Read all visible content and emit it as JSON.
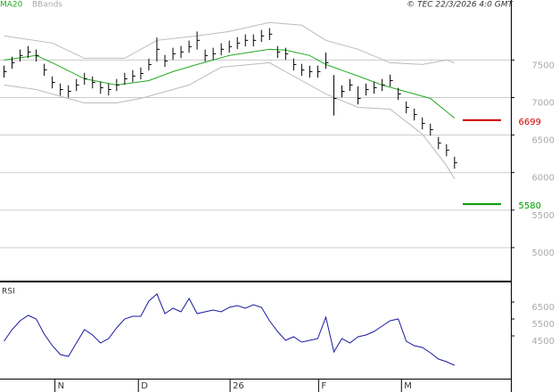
{
  "chart_data": [
    {
      "type": "ohlc",
      "title": "MA20",
      "subtitle": "BBands",
      "annotation": "© TEC 22/3/2026 4:0 GMT",
      "xlim": [
        -0.5,
        63
      ],
      "xticks": [
        {
          "value": 6.33,
          "label": "N"
        },
        {
          "value": 16.7,
          "label": "D"
        },
        {
          "value": 28.1,
          "label": "26"
        },
        {
          "value": 39.1,
          "label": "F"
        },
        {
          "value": 49.4,
          "label": "M"
        }
      ],
      "ylim": [
        4560,
        8300
      ],
      "yticks": [
        5000,
        5500,
        6000,
        6500,
        7000,
        7500
      ],
      "grid": true,
      "color": "#000000",
      "high": [
        7425,
        7544,
        7640,
        7687,
        7640,
        7449,
        7282,
        7187,
        7163,
        7247,
        7330,
        7282,
        7211,
        7187,
        7247,
        7330,
        7366,
        7401,
        7520,
        7800,
        7568,
        7663,
        7687,
        7759,
        7880,
        7640,
        7663,
        7723,
        7759,
        7806,
        7842,
        7842,
        7901,
        7925,
        7687,
        7663,
        7520,
        7449,
        7425,
        7425,
        7600,
        7300,
        7163,
        7247,
        7150,
        7187,
        7211,
        7247,
        7306,
        7128,
        6949,
        6854,
        6735,
        6652,
        6473,
        6378,
        6211
      ],
      "low": [
        7265,
        7384,
        7480,
        7527,
        7480,
        7289,
        7122,
        7027,
        7003,
        7087,
        7170,
        7122,
        7051,
        7027,
        7087,
        7170,
        7206,
        7241,
        7360,
        7480,
        7408,
        7503,
        7527,
        7599,
        7640,
        7480,
        7503,
        7563,
        7599,
        7646,
        7682,
        7682,
        7741,
        7765,
        7527,
        7503,
        7360,
        7289,
        7265,
        7265,
        7384,
        6760,
        7003,
        7087,
        6908,
        7027,
        7051,
        7087,
        7146,
        6968,
        6789,
        6694,
        6575,
        6492,
        6313,
        6218,
        6051
      ],
      "close": [
        7345,
        7464,
        7560,
        7607,
        7560,
        7369,
        7202,
        7107,
        7083,
        7167,
        7250,
        7202,
        7131,
        7107,
        7167,
        7250,
        7286,
        7321,
        7440,
        7643,
        7488,
        7583,
        7607,
        7679,
        7762,
        7560,
        7583,
        7643,
        7679,
        7726,
        7762,
        7762,
        7821,
        7845,
        7607,
        7583,
        7440,
        7369,
        7345,
        7345,
        7464,
        6988,
        7083,
        7167,
        6988,
        7107,
        7131,
        7167,
        7226,
        7048,
        6869,
        6774,
        6655,
        6572,
        6393,
        6298,
        6131
      ],
      "lines": [
        {
          "color": "#22aa22",
          "x": [
            0,
            4,
            6,
            10,
            14,
            18,
            21,
            24,
            28,
            33,
            35,
            38,
            40,
            44,
            47,
            49,
            53,
            56
          ],
          "values": [
            7500,
            7560,
            7464,
            7250,
            7167,
            7226,
            7345,
            7440,
            7560,
            7643,
            7631,
            7560,
            7440,
            7286,
            7167,
            7107,
            6988,
            6726
          ]
        },
        {
          "color": "#bbbbbb",
          "x": [
            0,
            6,
            10,
            15,
            19,
            24,
            28,
            33,
            37,
            40,
            44,
            48,
            52,
            55,
            56
          ],
          "values": [
            7821,
            7726,
            7524,
            7524,
            7762,
            7821,
            7881,
            8000,
            7964,
            7762,
            7643,
            7464,
            7440,
            7500,
            7464
          ]
        },
        {
          "color": "#bbbbbb",
          "x": [
            0,
            4,
            10,
            14,
            17,
            23,
            27,
            33,
            37,
            40,
            44,
            48,
            52,
            55,
            56
          ],
          "values": [
            7167,
            7107,
            6929,
            6929,
            6988,
            7167,
            7405,
            7464,
            7226,
            7048,
            6869,
            6845,
            6512,
            6095,
            5917
          ]
        }
      ],
      "levels": [
        {
          "value": 6699,
          "color": "#cc0000"
        },
        {
          "value": 5580,
          "color": "#009900"
        }
      ]
    },
    {
      "type": "line",
      "title": "RSI",
      "xlim": [
        -0.5,
        63
      ],
      "ylim": [
        1974,
        7660
      ],
      "yticks": [
        4500,
        5500,
        6500
      ],
      "series": [
        {
          "color": "#1a1aa0",
          "x": [
            0,
            1,
            2,
            3,
            4,
            5,
            6,
            7,
            8,
            9,
            10,
            11,
            12,
            13,
            14,
            15,
            16,
            17,
            18,
            19,
            20,
            21,
            22,
            23,
            24,
            25,
            26,
            27,
            28,
            29,
            30,
            31,
            32,
            33,
            34,
            35,
            36,
            37,
            38,
            39,
            40,
            41,
            42,
            43,
            44,
            45,
            46,
            47,
            48,
            49,
            50,
            51,
            52,
            53,
            54,
            55,
            56
          ],
          "values": [
            4184,
            4868,
            5395,
            5711,
            5500,
            4605,
            3921,
            3395,
            3290,
            4079,
            4868,
            4553,
            4079,
            4342,
            4974,
            5500,
            5658,
            5658,
            6553,
            6974,
            5816,
            6132,
            5921,
            6711,
            5816,
            5921,
            6026,
            5921,
            6184,
            6289,
            6132,
            6342,
            6184,
            5395,
            4763,
            4237,
            4447,
            4132,
            4237,
            4342,
            5605,
            3553,
            4342,
            4079,
            4447,
            4553,
            4763,
            5079,
            5395,
            5500,
            4184,
            3921,
            3816,
            3500,
            3132,
            2974,
            2763
          ]
        }
      ]
    }
  ]
}
